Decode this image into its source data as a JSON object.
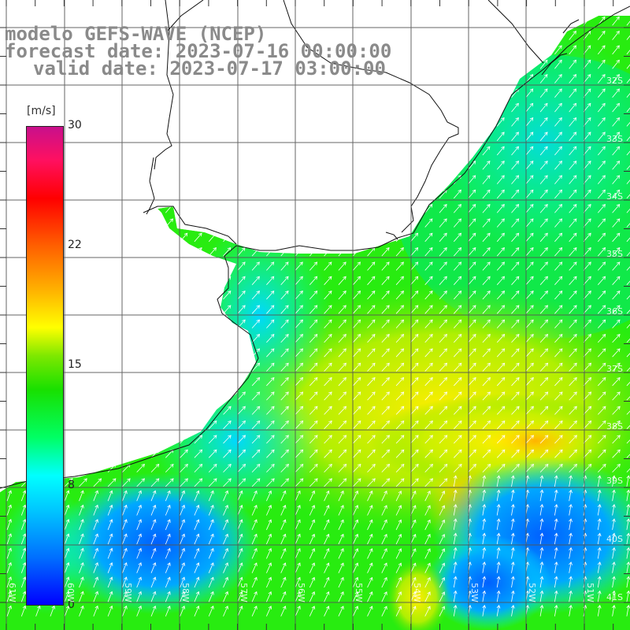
{
  "header": {
    "title_line1": "modelo GEFS-WAVE (NCEP)",
    "title_line2": "forecast date: 2023-07-16 00:00:00",
    "title_line3": "valid date: 2023-07-17 03:00:00"
  },
  "colorbar": {
    "unit": "[m/s]",
    "ticks": [
      "30",
      "22",
      "15",
      "8",
      "0"
    ],
    "tick_values": [
      30,
      22,
      15,
      8,
      0
    ],
    "range": [
      0,
      30
    ],
    "colors": [
      "#0000ff",
      "#00c8ff",
      "#00ffff",
      "#18e000",
      "#ffff00",
      "#ff6000",
      "#ff0000",
      "#c8108c"
    ]
  },
  "map": {
    "lat_labels": [
      "32S",
      "33S",
      "34S",
      "35S",
      "36S",
      "37S",
      "38S",
      "39S",
      "40S",
      "41S"
    ],
    "lon_labels": [
      "61W",
      "60W",
      "59W",
      "58W",
      "57W",
      "56W",
      "55W",
      "54W",
      "53W",
      "52W",
      "51W"
    ],
    "land_color": "#ffffff",
    "grid_color": "#555555",
    "arrow_color": "#ffffff",
    "arrow_direction": "north-east"
  }
}
